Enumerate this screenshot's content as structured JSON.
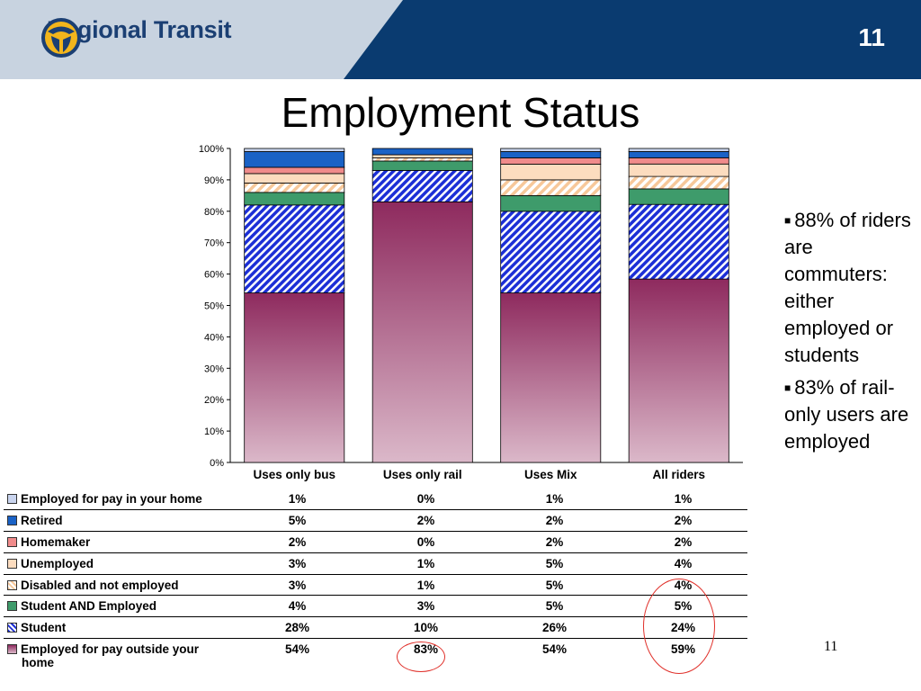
{
  "header": {
    "brand": "Regional Transit",
    "slide_number": "11",
    "colors": {
      "dark": "#0a3b70",
      "light": "#c8d3e0"
    }
  },
  "title": "Employment Status",
  "bullets": [
    "88% of riders are commuters: either employed or students",
    "83% of rail-only users are employed"
  ],
  "footer_page": "11",
  "chart_data": {
    "type": "bar",
    "stacked": "percent",
    "categories": [
      "Uses only bus",
      "Uses only rail",
      "Uses Mix",
      "All riders"
    ],
    "ylim": [
      0,
      100
    ],
    "yticks": [
      "0%",
      "10%",
      "20%",
      "30%",
      "40%",
      "50%",
      "60%",
      "70%",
      "80%",
      "90%",
      "100%"
    ],
    "series": [
      {
        "name": "Employed for pay in your home",
        "values": [
          1,
          0,
          1,
          1
        ],
        "labels": [
          "1%",
          "0%",
          "1%",
          "1%"
        ],
        "color": "#c9d4ee",
        "pattern": "solid"
      },
      {
        "name": "Retired",
        "values": [
          5,
          2,
          2,
          2
        ],
        "labels": [
          "5%",
          "2%",
          "2%",
          "2%"
        ],
        "color": "#1a62c6",
        "pattern": "solid"
      },
      {
        "name": "Homemaker",
        "values": [
          2,
          0,
          2,
          2
        ],
        "labels": [
          "2%",
          "0%",
          "2%",
          "2%"
        ],
        "color": "#f08b8b",
        "pattern": "solid"
      },
      {
        "name": "Unemployed",
        "values": [
          3,
          1,
          5,
          4
        ],
        "labels": [
          "3%",
          "1%",
          "5%",
          "4%"
        ],
        "color": "#fcdcbf",
        "pattern": "solid"
      },
      {
        "name": "Disabled and not employed",
        "values": [
          3,
          1,
          5,
          4
        ],
        "labels": [
          "3%",
          "1%",
          "5%",
          "4%"
        ],
        "color": "#f7c89a",
        "pattern": "hatch-light"
      },
      {
        "name": "Student AND Employed",
        "values": [
          4,
          3,
          5,
          5
        ],
        "labels": [
          "4%",
          "3%",
          "5%",
          "5%"
        ],
        "color": "#3e9b6b",
        "pattern": "solid"
      },
      {
        "name": "Student",
        "values": [
          28,
          10,
          26,
          24
        ],
        "labels": [
          "28%",
          "10%",
          "26%",
          "24%"
        ],
        "color": "#1c2fd6",
        "pattern": "hatch-dense"
      },
      {
        "name": "Employed for pay outside your home",
        "values": [
          54,
          83,
          54,
          59
        ],
        "labels": [
          "54%",
          "83%",
          "54%",
          "59%"
        ],
        "color": "#8e2a5e",
        "pattern": "gradient"
      }
    ],
    "highlighted": [
      "83%",
      "5%",
      "24%",
      "59%"
    ],
    "legend": "table-below"
  }
}
